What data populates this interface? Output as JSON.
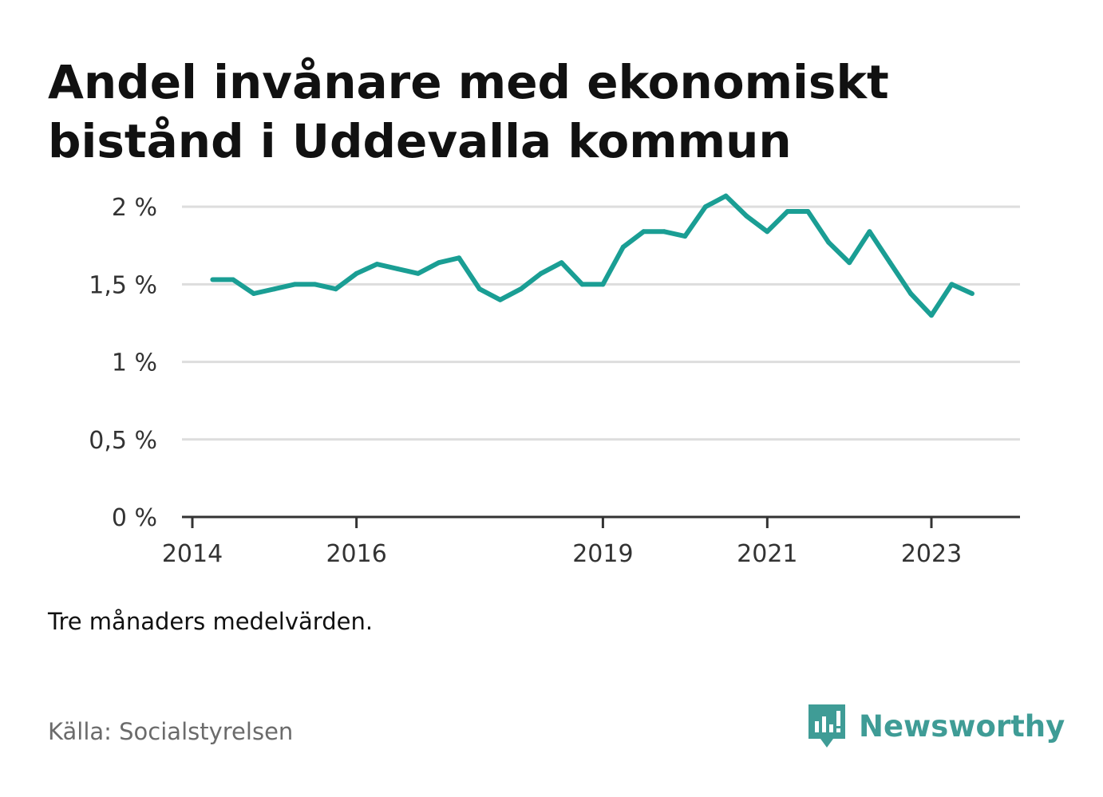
{
  "title": "Andel invånare med ekonomiskt bistånd i Uddevalla kommun",
  "note": "Tre månaders medelvärden.",
  "source": "Källa: Socialstyrelsen",
  "brand": {
    "name": "Newsworthy",
    "icon": "newsworthy-logo-icon",
    "color": "#3f9c96"
  },
  "colors": {
    "line": "#1a9e94",
    "grid": "#dddddd",
    "axis": "#333333"
  },
  "chart_data": {
    "type": "line",
    "title": "Andel invånare med ekonomiskt bistånd i Uddevalla kommun",
    "xlabel": "",
    "ylabel": "",
    "y_unit": "%",
    "ylim": [
      0,
      2.15
    ],
    "xlim": [
      "2014-01-01",
      "2024-01-01"
    ],
    "y_ticks": [
      0,
      0.5,
      1,
      1.5,
      2
    ],
    "y_tick_labels": [
      "0 %",
      "0,5 %",
      "1 %",
      "1,5 %",
      "2 %"
    ],
    "x_ticks": [
      "2014-01-01",
      "2016-01-01",
      "2019-01-01",
      "2021-01-01",
      "2023-01-01"
    ],
    "x_tick_labels": [
      "2014",
      "2016",
      "2019",
      "2021",
      "2023"
    ],
    "grid": true,
    "legend": "none",
    "series": [
      {
        "x": [
          "2014-04",
          "2014-07",
          "2014-10",
          "2015-01",
          "2015-04",
          "2015-07",
          "2015-10",
          "2016-01",
          "2016-04",
          "2016-07",
          "2016-10",
          "2017-01",
          "2017-04",
          "2017-07",
          "2017-10",
          "2018-01",
          "2018-04",
          "2018-07",
          "2018-10",
          "2019-01",
          "2019-04",
          "2019-07",
          "2019-10",
          "2020-01",
          "2020-04",
          "2020-07",
          "2020-10",
          "2021-01",
          "2021-04",
          "2021-07",
          "2021-10",
          "2022-01",
          "2022-04",
          "2022-07",
          "2022-10",
          "2023-01",
          "2023-04",
          "2023-07"
        ],
        "values": [
          1.53,
          1.53,
          1.44,
          1.47,
          1.5,
          1.5,
          1.47,
          1.57,
          1.63,
          1.6,
          1.57,
          1.64,
          1.67,
          1.47,
          1.4,
          1.47,
          1.57,
          1.64,
          1.5,
          1.5,
          1.74,
          1.84,
          1.84,
          1.81,
          2.0,
          2.07,
          1.94,
          1.84,
          1.97,
          1.97,
          1.77,
          1.64,
          1.84,
          1.64,
          1.44,
          1.3,
          1.5,
          1.44
        ]
      }
    ]
  }
}
